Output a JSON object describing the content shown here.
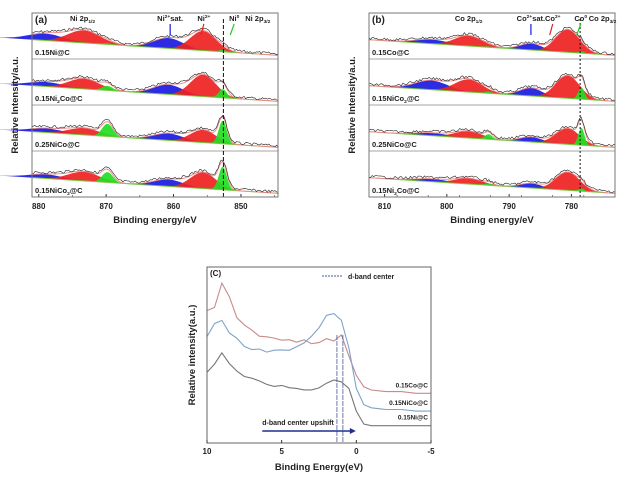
{
  "chart_data": [
    {
      "id": "a",
      "type": "area",
      "panel_label": "(a)",
      "title": "Ni 2p XPS spectra",
      "xlabel": "Binding energy/eV",
      "ylabel": "Relative Intensity/a.u.",
      "xlim": [
        881,
        844.5
      ],
      "xticks": [
        880,
        870,
        860,
        850
      ],
      "reference_line_x": 852.6,
      "annotations": [
        {
          "text": "Ni 2p1/2",
          "base": "Ni 2p",
          "sub": "1/2",
          "x": 873.5
        },
        {
          "text": "Ni2+sat.",
          "base": "Ni",
          "sup": "2+",
          "tail": "sat.",
          "x": 860.5,
          "arrow_color": "#1a1adf"
        },
        {
          "text": "Ni2+",
          "base": "Ni",
          "sup": "2+",
          "x": 855.5,
          "arrow_color": "#e02020"
        },
        {
          "text": "Ni0",
          "base": "Ni",
          "sup": "0",
          "x": 851,
          "arrow_color": "#22cc22"
        },
        {
          "text": "Ni 2p3/2",
          "base": "Ni 2p",
          "sub": "3/2",
          "x": 847.5
        }
      ],
      "samples": [
        {
          "label": "0.15Ni@C",
          "base": "0.15Ni@C",
          "peaks": [
            {
              "component": "Ni2+ sat.",
              "color": "#1a1adf",
              "center": 879,
              "height": 0.3,
              "width": 2.6
            },
            {
              "component": "Ni2+",
              "color": "#ee2222",
              "center": 873.3,
              "height": 0.55,
              "width": 2.4
            },
            {
              "component": "Ni0",
              "color": "#22dd22",
              "center": 869.8,
              "height": 0.05,
              "width": 0.8
            },
            {
              "component": "Ni2+ sat.",
              "color": "#1a1adf",
              "center": 860.8,
              "height": 0.45,
              "width": 2.2
            },
            {
              "component": "Ni2+",
              "color": "#ee2222",
              "center": 855.6,
              "height": 0.85,
              "width": 1.9
            },
            {
              "component": "Ni0",
              "color": "#22dd22",
              "center": 852.7,
              "height": 0.08,
              "width": 0.6
            }
          ]
        },
        {
          "label": "0.15Ni2Co@C",
          "base": "0.15Ni",
          "sub": "2",
          "tail": "Co@C",
          "peaks": [
            {
              "component": "Ni2+ sat.",
              "color": "#1a1adf",
              "center": 879,
              "height": 0.2,
              "width": 2.6
            },
            {
              "component": "Ni2+",
              "color": "#ee2222",
              "center": 873.3,
              "height": 0.45,
              "width": 2.3
            },
            {
              "component": "Ni0",
              "color": "#22dd22",
              "center": 869.8,
              "height": 0.2,
              "width": 0.8
            },
            {
              "component": "Ni2+ sat.",
              "color": "#1a1adf",
              "center": 860.8,
              "height": 0.42,
              "width": 2.2
            },
            {
              "component": "Ni2+",
              "color": "#ee2222",
              "center": 855.6,
              "height": 0.95,
              "width": 1.9
            },
            {
              "component": "Ni0",
              "color": "#22dd22",
              "center": 852.7,
              "height": 0.38,
              "width": 0.6
            }
          ]
        },
        {
          "label": "0.25NiCo@C",
          "base": "0.25NiCo@C",
          "peaks": [
            {
              "component": "Ni2+ sat.",
              "color": "#1a1adf",
              "center": 879,
              "height": 0.18,
              "width": 2.6
            },
            {
              "component": "Ni2+",
              "color": "#ee2222",
              "center": 873.3,
              "height": 0.3,
              "width": 2.3
            },
            {
              "component": "Ni0",
              "color": "#22dd22",
              "center": 869.8,
              "height": 0.55,
              "width": 0.8
            },
            {
              "component": "Ni2+ sat.",
              "color": "#1a1adf",
              "center": 860.8,
              "height": 0.3,
              "width": 2.2
            },
            {
              "component": "Ni2+",
              "color": "#ee2222",
              "center": 855.6,
              "height": 0.55,
              "width": 1.9
            },
            {
              "component": "Ni0",
              "color": "#22dd22",
              "center": 852.7,
              "height": 1.0,
              "width": 0.6
            }
          ]
        },
        {
          "label": "0.15NiCo2@C",
          "base": "0.15NiCo",
          "sub": "2",
          "tail": "@C",
          "peaks": [
            {
              "component": "Ni2+ sat.",
              "color": "#1a1adf",
              "center": 879,
              "height": 0.18,
              "width": 2.6
            },
            {
              "component": "Ni2+",
              "color": "#ee2222",
              "center": 873.3,
              "height": 0.4,
              "width": 2.3
            },
            {
              "component": "Ni0",
              "color": "#22dd22",
              "center": 869.8,
              "height": 0.45,
              "width": 0.8
            },
            {
              "component": "Ni2+ sat.",
              "color": "#1a1adf",
              "center": 860.8,
              "height": 0.3,
              "width": 2.2
            },
            {
              "component": "Ni2+",
              "color": "#ee2222",
              "center": 855.6,
              "height": 0.7,
              "width": 1.9
            },
            {
              "component": "Ni0",
              "color": "#22dd22",
              "center": 852.7,
              "height": 1.0,
              "width": 0.6
            }
          ]
        }
      ]
    },
    {
      "id": "b",
      "type": "area",
      "panel_label": "(b)",
      "title": "Co 2p XPS spectra",
      "xlabel": "Binding energy/eV",
      "ylabel": "Relative Intensity/a.u.",
      "xlim": [
        812.5,
        773
      ],
      "xticks": [
        810,
        800,
        790,
        780
      ],
      "reference_line_x": 778.6,
      "annotations": [
        {
          "text": "Co 2p1/2",
          "base": "Co 2p",
          "sub": "1/2",
          "x": 796.5
        },
        {
          "text": "Co2+sat.",
          "base": "Co",
          "sup": "2+",
          "tail": "sat.",
          "x": 786.5,
          "arrow_color": "#1a1adf"
        },
        {
          "text": "Co2+",
          "base": "Co",
          "sup": "2+",
          "x": 783,
          "arrow_color": "#e02020"
        },
        {
          "text": "Co0",
          "base": "Co",
          "sup": "0",
          "x": 778.5,
          "arrow_color": "#22cc22"
        },
        {
          "text": "Co 2p3/2",
          "base": "Co 2p",
          "sub": "3/2",
          "x": 775
        }
      ],
      "samples": [
        {
          "label": "0.15Co@C",
          "base": "0.15Co@C",
          "peaks": [
            {
              "component": "Co2+ sat.",
              "color": "#1a1adf",
              "center": 802.5,
              "height": 0.18,
              "width": 2.6
            },
            {
              "component": "Co2+",
              "color": "#ee2222",
              "center": 796.5,
              "height": 0.45,
              "width": 2.2
            },
            {
              "component": "Co0",
              "color": "#22dd22",
              "center": 793.3,
              "height": 0.04,
              "width": 0.6
            },
            {
              "component": "Co2+ sat.",
              "color": "#1a1adf",
              "center": 786.5,
              "height": 0.28,
              "width": 1.8
            },
            {
              "component": "Co2+",
              "color": "#ee2222",
              "center": 780.6,
              "height": 1.0,
              "width": 1.9
            },
            {
              "component": "Co0",
              "color": "#22dd22",
              "center": 778.4,
              "height": 0.08,
              "width": 0.5
            }
          ]
        },
        {
          "label": "0.15NiCo2@C",
          "base": "0.15NiCo",
          "sub": "2",
          "tail": "@C",
          "peaks": [
            {
              "component": "Co2+ sat.",
              "color": "#1a1adf",
              "center": 802.5,
              "height": 0.4,
              "width": 2.6
            },
            {
              "component": "Co2+",
              "color": "#ee2222",
              "center": 796.5,
              "height": 0.55,
              "width": 2.2
            },
            {
              "component": "Co0",
              "color": "#22dd22",
              "center": 793.3,
              "height": 0.08,
              "width": 0.6
            },
            {
              "component": "Co2+ sat.",
              "color": "#1a1adf",
              "center": 786.5,
              "height": 0.35,
              "width": 1.8
            },
            {
              "component": "Co2+",
              "color": "#ee2222",
              "center": 780.6,
              "height": 1.0,
              "width": 1.9
            },
            {
              "component": "Co0",
              "color": "#22dd22",
              "center": 778.4,
              "height": 0.5,
              "width": 0.5
            }
          ]
        },
        {
          "label": "0.25NiCo@C",
          "base": "0.25NiCo@C",
          "peaks": [
            {
              "component": "Co2+ sat.",
              "color": "#1a1adf",
              "center": 802.5,
              "height": 0.12,
              "width": 2.6
            },
            {
              "component": "Co2+",
              "color": "#ee2222",
              "center": 796.5,
              "height": 0.3,
              "width": 2.2
            },
            {
              "component": "Co0",
              "color": "#22dd22",
              "center": 793.3,
              "height": 0.22,
              "width": 0.6
            },
            {
              "component": "Co2+ sat.",
              "color": "#1a1adf",
              "center": 786.5,
              "height": 0.22,
              "width": 1.8
            },
            {
              "component": "Co2+",
              "color": "#ee2222",
              "center": 780.6,
              "height": 0.7,
              "width": 1.9
            },
            {
              "component": "Co0",
              "color": "#22dd22",
              "center": 778.4,
              "height": 0.75,
              "width": 0.5
            }
          ]
        },
        {
          "label": "0.15Ni2Co@C",
          "base": "0.15Ni",
          "sub": "2",
          "tail": "Co@C",
          "peaks": [
            {
              "component": "Co2+ sat.",
              "color": "#1a1adf",
              "center": 802.5,
              "height": 0.12,
              "width": 2.6
            },
            {
              "component": "Co2+",
              "color": "#ee2222",
              "center": 796.5,
              "height": 0.25,
              "width": 2.2
            },
            {
              "component": "Co0",
              "color": "#22dd22",
              "center": 793.3,
              "height": 0.08,
              "width": 0.6
            },
            {
              "component": "Co2+ sat.",
              "color": "#1a1adf",
              "center": 786.5,
              "height": 0.2,
              "width": 1.8
            },
            {
              "component": "Co2+",
              "color": "#ee2222",
              "center": 780.6,
              "height": 0.8,
              "width": 1.9
            },
            {
              "component": "Co0",
              "color": "#22dd22",
              "center": 778.4,
              "height": 0.12,
              "width": 0.5
            }
          ]
        }
      ]
    },
    {
      "id": "c",
      "type": "line",
      "panel_label": "(C)",
      "title": "Valence band spectra",
      "xlabel": "Binding Energy(eV)",
      "ylabel": "Relative intensity(a.u.)",
      "xlim": [
        10,
        -5
      ],
      "xticks": [
        10,
        5,
        0,
        -5
      ],
      "legend": {
        "label": "d-band center",
        "position": "top-right"
      },
      "dband_centers": [
        0.9,
        1.3
      ],
      "annotation": {
        "text": "d-band center upshift",
        "arrow_from": 6.3,
        "arrow_to": 0.3
      },
      "series": [
        {
          "name": "0.15Co@C",
          "color": "#c98a8a",
          "x": [
            10,
            9.5,
            9,
            8.5,
            8,
            7.5,
            7,
            6.5,
            6,
            5.5,
            5,
            4.5,
            4,
            3.5,
            3,
            2.5,
            2,
            1.5,
            1,
            0.5,
            0,
            -0.5,
            -1,
            -2,
            -3,
            -4,
            -5
          ],
          "y": [
            0.78,
            0.8,
            0.95,
            0.86,
            0.74,
            0.69,
            0.66,
            0.63,
            0.62,
            0.61,
            0.6,
            0.6,
            0.59,
            0.6,
            0.58,
            0.59,
            0.6,
            0.6,
            0.63,
            0.5,
            0.38,
            0.31,
            0.29,
            0.28,
            0.28,
            0.27,
            0.27
          ]
        },
        {
          "name": "0.15NiCo@C",
          "color": "#7ea3c8",
          "x": [
            10,
            9.5,
            9,
            8.5,
            8,
            7.5,
            7,
            6.5,
            6,
            5.5,
            5,
            4.5,
            4,
            3.5,
            3,
            2.5,
            2,
            1.5,
            1,
            0.5,
            0,
            -0.5,
            -1,
            -2,
            -3,
            -4,
            -5
          ],
          "y": [
            0.62,
            0.7,
            0.72,
            0.64,
            0.6,
            0.56,
            0.53,
            0.55,
            0.52,
            0.53,
            0.53,
            0.54,
            0.56,
            0.58,
            0.62,
            0.68,
            0.75,
            0.77,
            0.72,
            0.55,
            0.3,
            0.2,
            0.18,
            0.17,
            0.17,
            0.16,
            0.16
          ]
        },
        {
          "name": "0.15Ni@C",
          "color": "#777777",
          "x": [
            10,
            9.5,
            9,
            8.5,
            8,
            7.5,
            7,
            6.5,
            6,
            5.5,
            5,
            4.5,
            4,
            3.5,
            3,
            2.5,
            2,
            1.5,
            1,
            0.5,
            0,
            -0.5,
            -1,
            -2,
            -3,
            -4,
            -5
          ],
          "y": [
            0.4,
            0.45,
            0.52,
            0.45,
            0.41,
            0.38,
            0.37,
            0.35,
            0.33,
            0.32,
            0.31,
            0.3,
            0.29,
            0.29,
            0.3,
            0.31,
            0.33,
            0.35,
            0.34,
            0.3,
            0.16,
            0.08,
            0.07,
            0.07,
            0.07,
            0.07,
            0.07
          ]
        }
      ],
      "ylim": [
        0,
        1
      ]
    }
  ]
}
